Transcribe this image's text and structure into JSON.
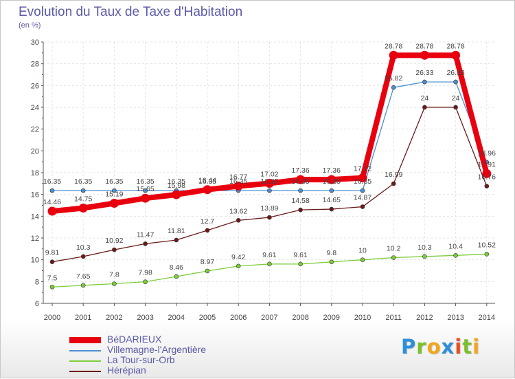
{
  "chart_data": {
    "type": "line",
    "title": "Evolution du Taux de Taxe d'Habitation",
    "ylabel": "(en %)",
    "xlabel": "",
    "ylim": [
      6,
      30
    ],
    "yticks": [
      "6",
      "8",
      "10",
      "12",
      "14",
      "16",
      "18",
      "20",
      "22",
      "24",
      "26",
      "28",
      "30"
    ],
    "categories": [
      "2000",
      "2001",
      "2002",
      "2003",
      "2004",
      "2005",
      "2006",
      "2007",
      "2008",
      "2009",
      "2010",
      "2011",
      "2012",
      "2013",
      "2014"
    ],
    "series": [
      {
        "name": "BéDARIEUX",
        "color": "#e8000f",
        "values": [
          14.46,
          14.75,
          15.19,
          15.65,
          15.98,
          16.44,
          16.77,
          17.02,
          17.36,
          17.36,
          17.52,
          28.78,
          28.78,
          28.78,
          17.91
        ],
        "labels": [
          "14.46",
          "14.75",
          "15.19",
          "15.65",
          "15.98",
          "16.44",
          "16.77",
          "17.02",
          "17.36",
          "17.36",
          "17.52",
          "28.78",
          "28.78",
          "28.78",
          "17.91"
        ]
      },
      {
        "name": "Villemagne-l'Argentière",
        "color": "#4a8fcf",
        "values": [
          16.35,
          16.35,
          16.35,
          16.35,
          16.35,
          16.35,
          16.35,
          16.35,
          16.35,
          16.35,
          16.35,
          25.82,
          26.33,
          26.33,
          18.96
        ],
        "labels": [
          "16.35",
          "16.35",
          "16.35",
          "16.35",
          "16.35",
          "16.35",
          "16.35",
          "16.35",
          "16.35",
          "16.35",
          "16.35",
          "25.82",
          "26.33",
          "26.33",
          "18.96"
        ]
      },
      {
        "name": "La Tour-sur-Orb",
        "color": "#7ccc3a",
        "values": [
          7.5,
          7.65,
          7.8,
          7.98,
          8.46,
          8.97,
          9.42,
          9.61,
          9.61,
          9.8,
          10,
          10.2,
          10.3,
          10.4,
          10.52
        ],
        "labels": [
          "7.5",
          "7.65",
          "7.8",
          "7.98",
          "8.46",
          "8.97",
          "9.42",
          "9.61",
          "9.61",
          "9.8",
          "10",
          "10.2",
          "10.3",
          "10.4",
          "10.52"
        ]
      },
      {
        "name": "Hérépian",
        "color": "#6b1a1a",
        "values": [
          9.81,
          10.3,
          10.92,
          11.47,
          11.81,
          12.7,
          13.62,
          13.89,
          14.58,
          14.65,
          14.87,
          16.99,
          24,
          24,
          16.76
        ],
        "labels": [
          "9.81",
          "10.3",
          "10.92",
          "11.47",
          "11.81",
          "12.7",
          "13.62",
          "13.89",
          "14.58",
          "14.65",
          "14.87",
          "16.99",
          "24",
          "24",
          "16.76"
        ]
      }
    ],
    "legend": {
      "placement": "bottom-left",
      "entries": [
        "BéDARIEUX",
        "Villemagne-l'Argentière",
        "La Tour-sur-Orb",
        "Hérépian"
      ]
    }
  },
  "brand": {
    "letters": [
      "P",
      "r",
      "o",
      "x",
      "i",
      "t",
      "i"
    ],
    "colors": [
      "#2e8fd8",
      "#7cbf2a",
      "#f2a51a",
      "#2e8fd8",
      "#e84e1b",
      "#7cbf2a",
      "#f2a51a"
    ]
  }
}
